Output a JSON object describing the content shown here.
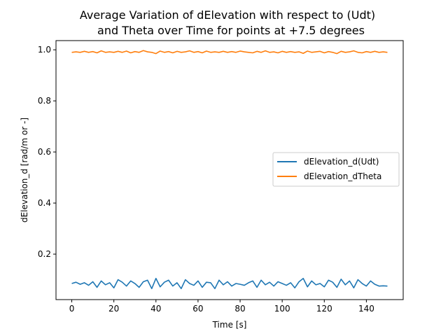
{
  "chart_data": {
    "type": "line",
    "title_lines": [
      "Average Variation of dElevation with respect to (Udt)",
      "and Theta over Time for points at +7.5 degrees"
    ],
    "xlabel": "Time [s]",
    "ylabel": "dElevation_d [rad/m or -]",
    "xlim": [
      -7.5,
      157.5
    ],
    "ylim": [
      0.022,
      1.036
    ],
    "xticks": [
      0,
      20,
      40,
      60,
      80,
      100,
      120,
      140
    ],
    "xtick_labels": [
      "0",
      "20",
      "40",
      "60",
      "80",
      "100",
      "120",
      "140"
    ],
    "yticks": [
      0.2,
      0.4,
      0.6,
      0.8,
      1.0
    ],
    "ytick_labels": [
      "0.2",
      "0.4",
      "0.6",
      "0.8",
      "1.0"
    ],
    "grid": false,
    "legend_position": "center-right",
    "series": [
      {
        "name": "dElevation_d(Udt)",
        "color": "#1f77b4",
        "x": [
          0,
          2,
          4,
          6,
          8,
          10,
          12,
          14,
          16,
          18,
          20,
          22,
          24,
          26,
          28,
          30,
          32,
          34,
          36,
          38,
          40,
          42,
          44,
          46,
          48,
          50,
          52,
          54,
          56,
          58,
          60,
          62,
          64,
          66,
          68,
          70,
          72,
          74,
          76,
          78,
          80,
          82,
          84,
          86,
          88,
          90,
          92,
          94,
          96,
          98,
          100,
          102,
          104,
          106,
          108,
          110,
          112,
          114,
          116,
          118,
          120,
          122,
          124,
          126,
          128,
          130,
          132,
          134,
          136,
          138,
          140,
          142,
          144,
          146,
          148,
          150
        ],
        "y": [
          0.085,
          0.09,
          0.082,
          0.088,
          0.078,
          0.092,
          0.07,
          0.095,
          0.08,
          0.088,
          0.068,
          0.1,
          0.09,
          0.075,
          0.095,
          0.085,
          0.07,
          0.092,
          0.098,
          0.065,
          0.105,
          0.072,
          0.09,
          0.098,
          0.075,
          0.088,
          0.065,
          0.1,
          0.085,
          0.078,
          0.095,
          0.07,
          0.09,
          0.088,
          0.065,
          0.098,
          0.08,
          0.092,
          0.075,
          0.085,
          0.082,
          0.078,
          0.088,
          0.095,
          0.07,
          0.098,
          0.08,
          0.09,
          0.075,
          0.092,
          0.085,
          0.078,
          0.088,
          0.068,
          0.092,
          0.105,
          0.072,
          0.095,
          0.08,
          0.085,
          0.072,
          0.098,
          0.09,
          0.07,
          0.102,
          0.08,
          0.095,
          0.068,
          0.1,
          0.085,
          0.075,
          0.095,
          0.082,
          0.075,
          0.076,
          0.075
        ]
      },
      {
        "name": "dElevation_dTheta",
        "color": "#ff7f0e",
        "x": [
          0,
          2,
          4,
          6,
          8,
          10,
          12,
          14,
          16,
          18,
          20,
          22,
          24,
          26,
          28,
          30,
          32,
          34,
          36,
          38,
          40,
          42,
          44,
          46,
          48,
          50,
          52,
          54,
          56,
          58,
          60,
          62,
          64,
          66,
          68,
          70,
          72,
          74,
          76,
          78,
          80,
          82,
          84,
          86,
          88,
          90,
          92,
          94,
          96,
          98,
          100,
          102,
          104,
          106,
          108,
          110,
          112,
          114,
          116,
          118,
          120,
          122,
          124,
          126,
          128,
          130,
          132,
          134,
          136,
          138,
          140,
          142,
          144,
          146,
          148,
          150
        ],
        "y": [
          0.99,
          0.992,
          0.99,
          0.994,
          0.99,
          0.993,
          0.988,
          0.996,
          0.99,
          0.992,
          0.99,
          0.994,
          0.99,
          0.995,
          0.988,
          0.993,
          0.99,
          0.997,
          0.992,
          0.99,
          0.985,
          0.995,
          0.99,
          0.993,
          0.988,
          0.994,
          0.99,
          0.992,
          0.996,
          0.99,
          0.993,
          0.988,
          0.995,
          0.99,
          0.992,
          0.99,
          0.994,
          0.99,
          0.993,
          0.99,
          0.995,
          0.992,
          0.99,
          0.988,
          0.994,
          0.99,
          0.996,
          0.99,
          0.992,
          0.988,
          0.994,
          0.99,
          0.993,
          0.99,
          0.992,
          0.986,
          0.995,
          0.99,
          0.992,
          0.994,
          0.988,
          0.993,
          0.99,
          0.985,
          0.994,
          0.99,
          0.992,
          0.996,
          0.99,
          0.988,
          0.993,
          0.99,
          0.994,
          0.99,
          0.992,
          0.99
        ]
      }
    ]
  }
}
